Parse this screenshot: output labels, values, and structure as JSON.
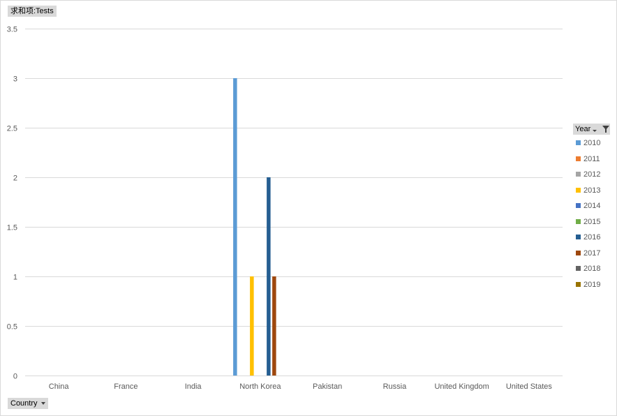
{
  "value_field": {
    "label": "求和项:Tests"
  },
  "axis_field": {
    "label": "Country"
  },
  "legend_field": {
    "label": "Year"
  },
  "colors": {
    "2010": "#5b9bd5",
    "2011": "#ed7d31",
    "2012": "#a5a5a5",
    "2013": "#ffc000",
    "2014": "#4472c4",
    "2015": "#70ad47",
    "2016": "#255e91",
    "2017": "#9e480e",
    "2018": "#636363",
    "2019": "#997300"
  },
  "chart_data": {
    "type": "bar",
    "ylim": [
      0,
      3.5
    ],
    "y_ticks": [
      "0",
      "0.5",
      "1",
      "1.5",
      "2",
      "2.5",
      "3",
      "3.5"
    ],
    "grid": true,
    "legend_position": "right",
    "categories": [
      "China",
      "France",
      "India",
      "North Korea",
      "Pakistan",
      "Russia",
      "United Kingdom",
      "United States"
    ],
    "series": [
      {
        "name": "2010",
        "values": [
          null,
          null,
          null,
          3,
          null,
          null,
          null,
          null
        ]
      },
      {
        "name": "2011",
        "values": [
          null,
          null,
          null,
          null,
          null,
          null,
          null,
          null
        ]
      },
      {
        "name": "2012",
        "values": [
          null,
          null,
          null,
          null,
          null,
          null,
          null,
          null
        ]
      },
      {
        "name": "2013",
        "values": [
          null,
          null,
          null,
          1,
          null,
          null,
          null,
          null
        ]
      },
      {
        "name": "2014",
        "values": [
          null,
          null,
          null,
          null,
          null,
          null,
          null,
          null
        ]
      },
      {
        "name": "2015",
        "values": [
          null,
          null,
          null,
          null,
          null,
          null,
          null,
          null
        ]
      },
      {
        "name": "2016",
        "values": [
          null,
          null,
          null,
          2,
          null,
          null,
          null,
          null
        ]
      },
      {
        "name": "2017",
        "values": [
          null,
          null,
          null,
          1,
          null,
          null,
          null,
          null
        ]
      },
      {
        "name": "2018",
        "values": [
          null,
          null,
          null,
          null,
          null,
          null,
          null,
          null
        ]
      },
      {
        "name": "2019",
        "values": [
          null,
          null,
          null,
          null,
          null,
          null,
          null,
          null
        ]
      }
    ]
  }
}
